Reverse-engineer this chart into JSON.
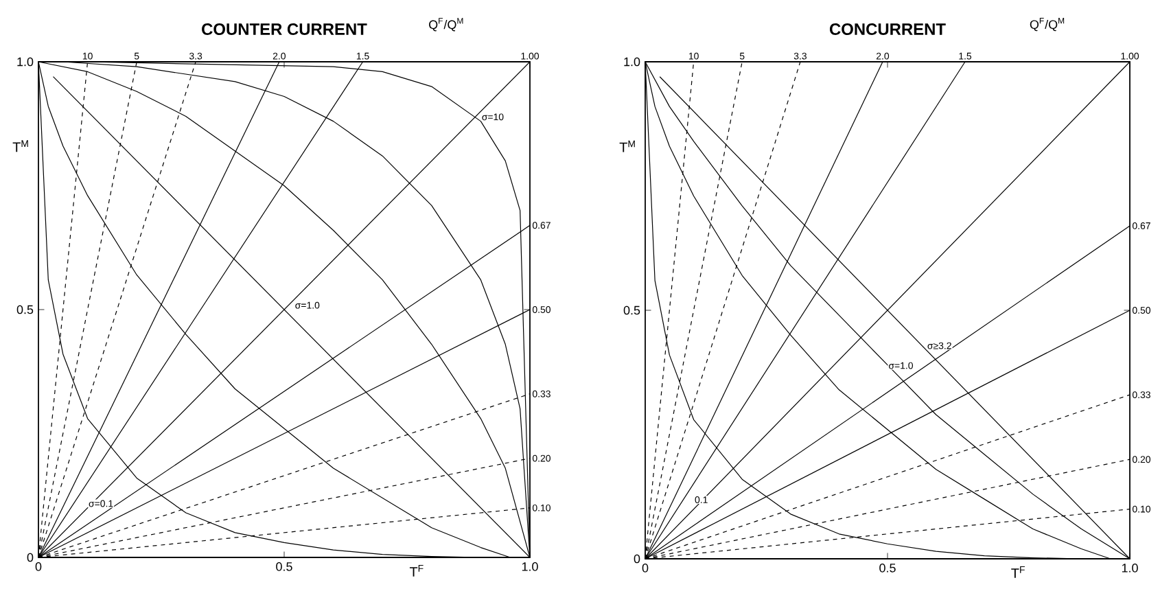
{
  "chart_data": [
    {
      "type": "line",
      "title": "COUNTER CURRENT",
      "xlabel": "T$^{F}$",
      "ylabel": "T$^{M}$",
      "xlim": [
        0,
        1
      ],
      "ylim": [
        0,
        1
      ],
      "xticks": [
        0,
        0.5,
        {
          "value": 1,
          "label": "1.0"
        }
      ],
      "yticks": [
        0,
        0.5,
        {
          "value": 1,
          "label": "1.0"
        }
      ],
      "annotations": [
        "Q$^{F}$/Q$^{M}$",
        {
          "text": "σ=10",
          "x": 0.9,
          "y": 0.88
        },
        {
          "text": "σ=1.0",
          "x": 0.52,
          "y": 0.5
        },
        {
          "text": "σ=0.1",
          "x": 0.1,
          "y": 0.1
        }
      ],
      "series": [
        {
          "name": "10",
          "color": "#000000",
          "line_style": "dashed",
          "x": [
            0,
            0.1
          ],
          "values": [
            0,
            1
          ]
        },
        {
          "name": "5",
          "color": "#000000",
          "line_style": "dashed",
          "x": [
            0,
            0.2
          ],
          "values": [
            0,
            1
          ]
        },
        {
          "name": "3.3",
          "color": "#000000",
          "line_style": "dashed",
          "x": [
            0,
            0.32
          ],
          "values": [
            0,
            1
          ]
        },
        {
          "name": "2.0",
          "color": "#000000",
          "line_style": "solid",
          "x": [
            0,
            0.49
          ],
          "values": [
            0,
            1
          ]
        },
        {
          "name": "1.5",
          "color": "#000000",
          "line_style": "solid",
          "x": [
            0,
            0.66
          ],
          "values": [
            0,
            1
          ]
        },
        {
          "name": "1.00",
          "color": "#000000",
          "line_style": "solid",
          "x": [
            0,
            1
          ],
          "values": [
            0,
            1
          ]
        },
        {
          "name": "0.67",
          "color": "#000000",
          "line_style": "solid",
          "x": [
            0,
            1
          ],
          "values": [
            0,
            0.67
          ]
        },
        {
          "name": "0.50",
          "color": "#000000",
          "line_style": "solid",
          "x": [
            0,
            1
          ],
          "values": [
            0,
            0.5
          ]
        },
        {
          "name": "0.33",
          "color": "#000000",
          "line_style": "dashed",
          "x": [
            0,
            1
          ],
          "values": [
            0,
            0.33
          ]
        },
        {
          "name": "0.20",
          "color": "#000000",
          "line_style": "dashed",
          "x": [
            0,
            1
          ],
          "values": [
            0,
            0.2
          ]
        },
        {
          "name": "0.10",
          "color": "#000000",
          "line_style": "dashed",
          "x": [
            0,
            1
          ],
          "values": [
            0,
            0.1
          ]
        },
        {
          "color": "#000000",
          "x": [
            0,
            0.02,
            0.05,
            0.1,
            0.2,
            0.3,
            0.4,
            0.5,
            0.6,
            0.7,
            0.8,
            0.9
          ],
          "values": [
            1,
            0.56,
            0.41,
            0.28,
            0.16,
            0.09,
            0.05,
            0.03,
            0.015,
            0.006,
            0.002,
            0
          ]
        },
        {
          "color": "#000000",
          "x": [
            0,
            0.02,
            0.05,
            0.1,
            0.2,
            0.3,
            0.4,
            0.5,
            0.6,
            0.7,
            0.8,
            0.9,
            0.96
          ],
          "values": [
            1,
            0.91,
            0.83,
            0.73,
            0.57,
            0.45,
            0.34,
            0.26,
            0.18,
            0.12,
            0.06,
            0.02,
            0
          ]
        },
        {
          "color": "#000000",
          "x": [
            0.03,
            1
          ],
          "values": [
            0.97,
            0
          ]
        },
        {
          "color": "#000000",
          "x": [
            0,
            0.1,
            0.2,
            0.3,
            0.4,
            0.5,
            0.6,
            0.7,
            0.8,
            0.9,
            0.95,
            1
          ],
          "values": [
            1,
            0.98,
            0.94,
            0.89,
            0.82,
            0.75,
            0.66,
            0.56,
            0.43,
            0.28,
            0.18,
            0
          ]
        },
        {
          "color": "#000000",
          "x": [
            0.05,
            0.2,
            0.4,
            0.5,
            0.6,
            0.7,
            0.8,
            0.9,
            0.95,
            0.98,
            1
          ],
          "values": [
            1,
            0.99,
            0.96,
            0.93,
            0.88,
            0.81,
            0.71,
            0.56,
            0.43,
            0.3,
            0
          ]
        },
        {
          "color": "#000000",
          "x": [
            0.1,
            0.6,
            0.7,
            0.8,
            0.9,
            0.95,
            0.98,
            1
          ],
          "values": [
            1,
            0.99,
            0.98,
            0.95,
            0.88,
            0.8,
            0.7,
            0
          ]
        }
      ]
    },
    {
      "type": "line",
      "title": "CONCURRENT",
      "xlabel": "T$^{F}$",
      "ylabel": "T$^{M}$",
      "xlim": [
        0,
        1
      ],
      "ylim": [
        0,
        1
      ],
      "xticks": [
        0,
        0.5,
        {
          "value": 1,
          "label": "1.0"
        }
      ],
      "yticks": [
        0,
        0.5,
        {
          "value": 1,
          "label": "1.0"
        }
      ],
      "annotations": [
        "Q$^{F}$/Q$^{M}$",
        {
          "text": "σ≥3.2",
          "x": 0.58,
          "y": 0.42
        },
        {
          "text": "σ=1.0",
          "x": 0.5,
          "y": 0.38
        },
        {
          "text": "0.1",
          "x": 0.1,
          "y": 0.11
        }
      ],
      "series": [
        {
          "name": "10",
          "color": "#000000",
          "line_style": "dashed",
          "x": [
            0,
            0.1
          ],
          "values": [
            0,
            1
          ]
        },
        {
          "name": "5",
          "color": "#000000",
          "line_style": "dashed",
          "x": [
            0,
            0.2
          ],
          "values": [
            0,
            1
          ]
        },
        {
          "name": "3.3",
          "color": "#000000",
          "line_style": "dashed",
          "x": [
            0,
            0.32
          ],
          "values": [
            0,
            1
          ]
        },
        {
          "name": "2.0",
          "color": "#000000",
          "line_style": "solid",
          "x": [
            0,
            0.49
          ],
          "values": [
            0,
            1
          ]
        },
        {
          "name": "1.5",
          "color": "#000000",
          "line_style": "solid",
          "x": [
            0,
            0.66
          ],
          "values": [
            0,
            1
          ]
        },
        {
          "name": "1.00",
          "color": "#000000",
          "line_style": "solid",
          "x": [
            0,
            1
          ],
          "values": [
            0,
            1
          ]
        },
        {
          "name": "0.67",
          "color": "#000000",
          "line_style": "solid",
          "x": [
            0,
            1
          ],
          "values": [
            0,
            0.67
          ]
        },
        {
          "name": "0.50",
          "color": "#000000",
          "line_style": "solid",
          "x": [
            0,
            1
          ],
          "values": [
            0,
            0.5
          ]
        },
        {
          "name": "0.33",
          "color": "#000000",
          "line_style": "dashed",
          "x": [
            0,
            1
          ],
          "values": [
            0,
            0.33
          ]
        },
        {
          "name": "0.20",
          "color": "#000000",
          "line_style": "dashed",
          "x": [
            0,
            1
          ],
          "values": [
            0,
            0.2
          ]
        },
        {
          "name": "0.10",
          "color": "#000000",
          "line_style": "dashed",
          "x": [
            0,
            1
          ],
          "values": [
            0,
            0.1
          ]
        },
        {
          "color": "#000000",
          "x": [
            0,
            0.02,
            0.05,
            0.1,
            0.2,
            0.3,
            0.4,
            0.5,
            0.6,
            0.7,
            0.8,
            0.9
          ],
          "values": [
            1,
            0.56,
            0.41,
            0.28,
            0.16,
            0.09,
            0.05,
            0.03,
            0.015,
            0.006,
            0.002,
            0
          ]
        },
        {
          "color": "#000000",
          "x": [
            0,
            0.02,
            0.05,
            0.1,
            0.2,
            0.3,
            0.4,
            0.5,
            0.6,
            0.7,
            0.8,
            0.9,
            0.96
          ],
          "values": [
            1,
            0.91,
            0.83,
            0.73,
            0.57,
            0.45,
            0.34,
            0.26,
            0.18,
            0.12,
            0.06,
            0.02,
            0
          ]
        },
        {
          "color": "#000000",
          "x": [
            0,
            0.05,
            0.1,
            0.2,
            0.3,
            0.4,
            0.5,
            0.6,
            0.7,
            0.8,
            0.9,
            1
          ],
          "values": [
            1,
            0.91,
            0.84,
            0.71,
            0.59,
            0.49,
            0.39,
            0.29,
            0.21,
            0.13,
            0.06,
            0
          ]
        },
        {
          "color": "#000000",
          "x": [
            0.03,
            1
          ],
          "values": [
            0.97,
            0
          ]
        }
      ]
    }
  ]
}
